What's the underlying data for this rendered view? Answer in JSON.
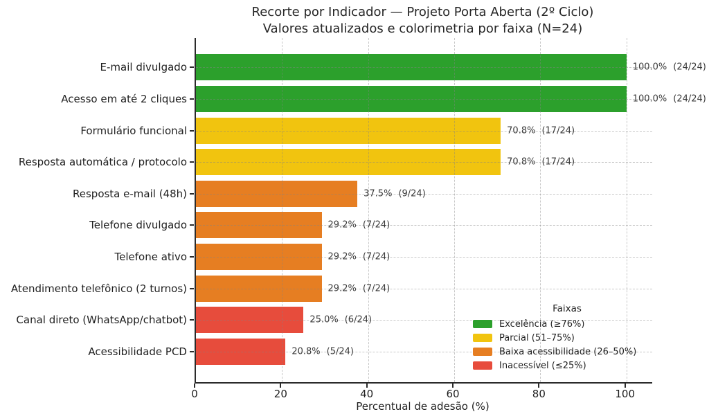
{
  "chart_data": {
    "type": "bar",
    "orientation": "horizontal",
    "title": "Recorte por Indicador — Projeto Porta Aberta (2º Ciclo)",
    "subtitle": "Valores atualizados e colorimetria por faixa (N=24)",
    "xlabel": "Percentual de adesão (%)",
    "xlim": [
      0,
      106
    ],
    "xticks": [
      0,
      20,
      40,
      60,
      80,
      100
    ],
    "grid": "dashed, both axes",
    "categories": [
      "E-mail divulgado",
      "Acesso em até 2 cliques",
      "Formulário funcional",
      "Resposta automática / protocolo",
      "Resposta e-mail (48h)",
      "Telefone divulgado",
      "Telefone ativo",
      "Atendimento telefônico (2 turnos)",
      "Canal direto (WhatsApp/chatbot)",
      "Acessibilidade PCD"
    ],
    "values": [
      100.0,
      100.0,
      70.8,
      70.8,
      37.5,
      29.2,
      29.2,
      29.2,
      25.0,
      20.8
    ],
    "value_labels": [
      "100.0%",
      "100.0%",
      "70.8%",
      "70.8%",
      "37.5%",
      "29.2%",
      "29.2%",
      "29.2%",
      "25.0%",
      "20.8%"
    ],
    "count_labels": [
      "(24/24)",
      "(24/24)",
      "(17/24)",
      "(17/24)",
      "(9/24)",
      "(7/24)",
      "(7/24)",
      "(7/24)",
      "(6/24)",
      "(5/24)"
    ],
    "bar_bands": [
      "excelencia",
      "excelencia",
      "parcial",
      "parcial",
      "baixa",
      "baixa",
      "baixa",
      "baixa",
      "inacessivel",
      "inacessivel"
    ],
    "band_colors": {
      "excelencia": "#2ca02c",
      "parcial": "#f1c40f",
      "baixa": "#e67e22",
      "inacessivel": "#e74c3c"
    },
    "legend": {
      "title": "Faixas",
      "position": "lower right",
      "items": [
        {
          "label": "Excelência (≥76%)",
          "band": "excelencia",
          "color": "#2ca02c"
        },
        {
          "label": "Parcial (51–75%)",
          "band": "parcial",
          "color": "#f1c40f"
        },
        {
          "label": "Baixa acessibilidade (26–50%)",
          "band": "baixa",
          "color": "#e67e22"
        },
        {
          "label": "Inacessível (≤25%)",
          "band": "inacessivel",
          "color": "#e74c3c"
        }
      ]
    }
  }
}
